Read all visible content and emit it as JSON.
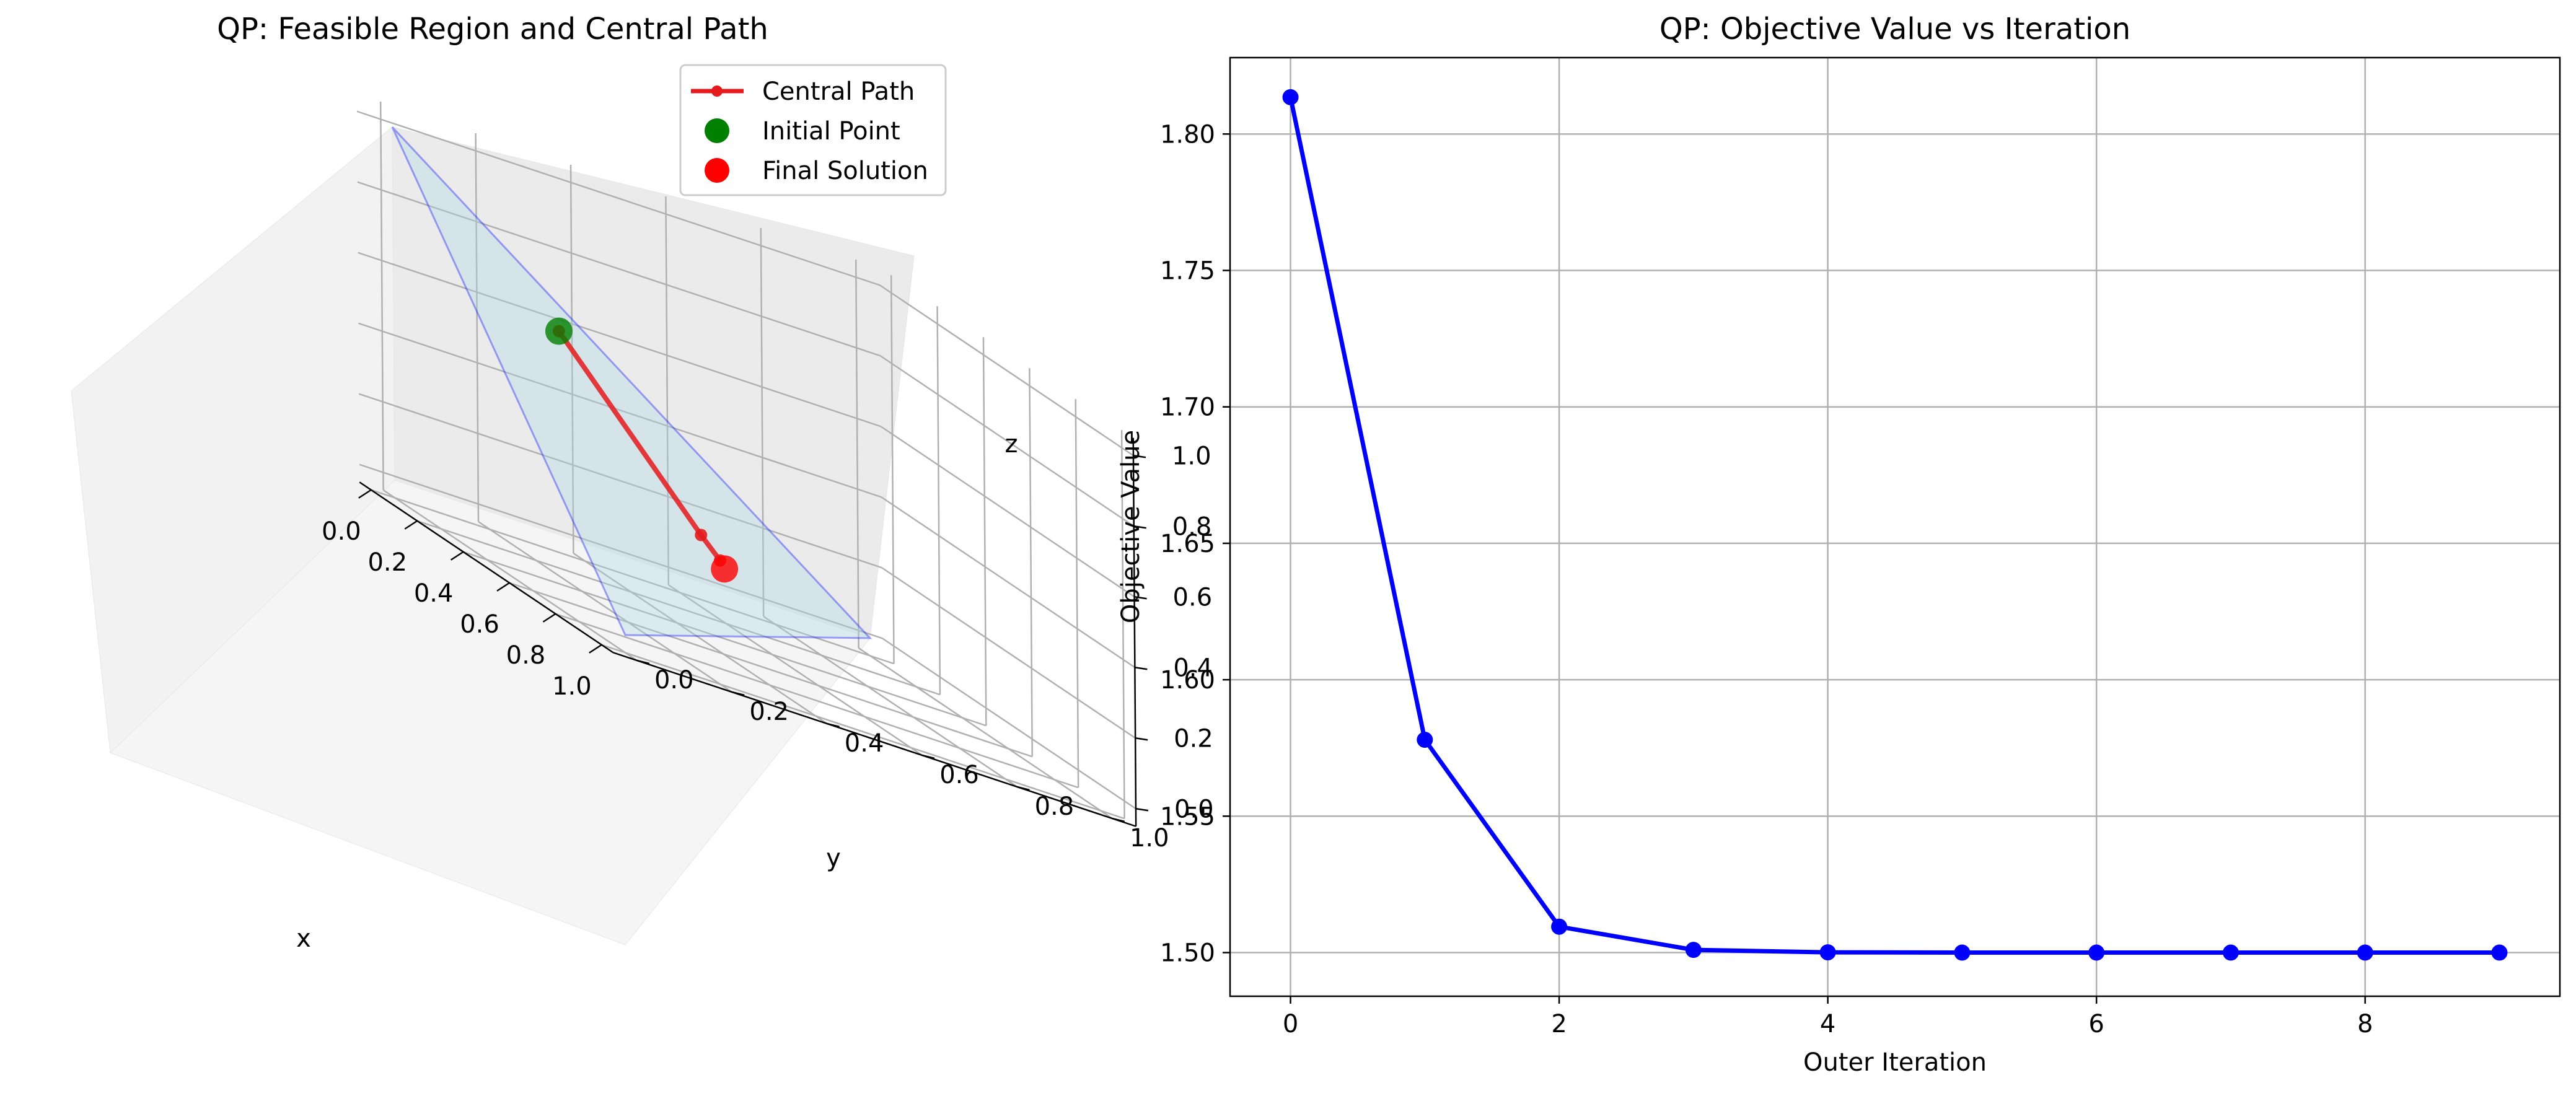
{
  "chart_data": [
    {
      "type": "line3d",
      "title": "QP: Feasible Region and Central Path",
      "xlabel": "x",
      "ylabel": "y",
      "zlabel": "z",
      "xlim": [
        0,
        1
      ],
      "ylim": [
        0,
        1
      ],
      "zlim": [
        0,
        1
      ],
      "x_ticks": [
        "0.0",
        "0.2",
        "0.4",
        "0.6",
        "0.8",
        "1.0"
      ],
      "y_ticks": [
        "0.0",
        "0.2",
        "0.4",
        "0.6",
        "0.8",
        "1.0"
      ],
      "z_ticks": [
        "0.0",
        "0.2",
        "0.4",
        "0.6",
        "0.8",
        "1.0"
      ],
      "grid": true,
      "legend_position": "top-right",
      "legend": [
        "Central Path",
        "Initial Point",
        "Final Solution"
      ],
      "feasible_region": {
        "vertices": [
          [
            1,
            0,
            0
          ],
          [
            0,
            1,
            0
          ],
          [
            0,
            0,
            1
          ]
        ],
        "color": "#add8e6",
        "edge_color": "#0000ff"
      },
      "central_path": {
        "name": "Central Path",
        "color": "#e41a1c",
        "points": [
          [
            0.1,
            0.3,
            0.6
          ],
          [
            0.3,
            0.5,
            0.2
          ],
          [
            0.32,
            0.53,
            0.15
          ]
        ]
      },
      "initial_point": {
        "name": "Initial Point",
        "point": [
          0.1,
          0.3,
          0.6
        ],
        "color": "#008000"
      },
      "final_solution": {
        "name": "Final Solution",
        "point": [
          0.333,
          0.533,
          0.133
        ],
        "color": "#ff0000"
      }
    },
    {
      "type": "line",
      "title": "QP: Objective Value vs Iteration",
      "xlabel": "Outer Iteration",
      "ylabel": "Objective Value",
      "x": [
        0,
        1,
        2,
        3,
        4,
        5,
        6,
        7,
        8,
        9
      ],
      "series": [
        {
          "values": [
            1.8135,
            1.578,
            1.5095,
            1.501,
            1.5001,
            1.5,
            1.5,
            1.5,
            1.5,
            1.5
          ],
          "color": "#0000ff"
        }
      ],
      "xlim": [
        -0.45,
        9.45
      ],
      "ylim": [
        1.484,
        1.828
      ],
      "x_ticks": [
        0,
        2,
        4,
        6,
        8
      ],
      "y_ticks": [
        1.5,
        1.55,
        1.6,
        1.65,
        1.7,
        1.75,
        1.8
      ],
      "y_tick_labels": [
        "1.50",
        "1.55",
        "1.60",
        "1.65",
        "1.70",
        "1.75",
        "1.80"
      ],
      "grid": true
    }
  ]
}
